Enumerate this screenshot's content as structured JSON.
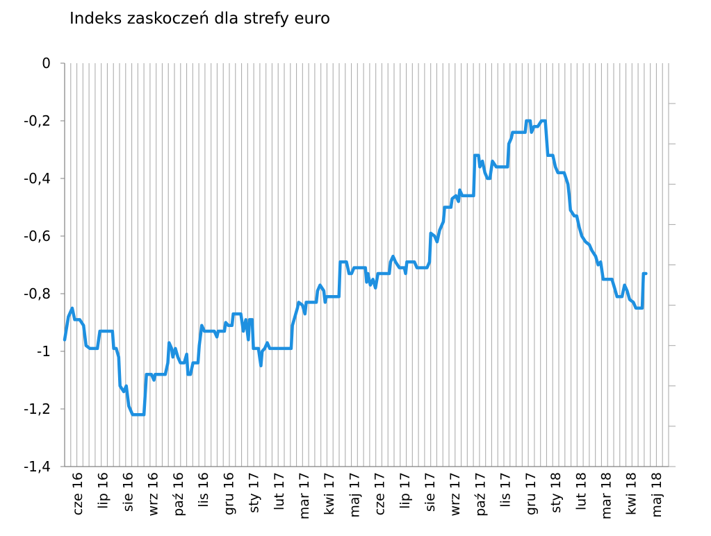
{
  "chart_data": {
    "type": "line",
    "title": "Indeks zaskoczeń dla strefy euro",
    "xlabel": "",
    "ylabel": "",
    "ylim": [
      -1.4,
      0
    ],
    "yticks": [
      {
        "value": 0,
        "label": "0"
      },
      {
        "value": -0.2,
        "label": "-0,2"
      },
      {
        "value": -0.4,
        "label": "-0,4"
      },
      {
        "value": -0.6,
        "label": "-0,6"
      },
      {
        "value": -0.8,
        "label": "-0,8"
      },
      {
        "value": -1.0,
        "label": "-1"
      },
      {
        "value": -1.2,
        "label": "-1,2"
      },
      {
        "value": -1.4,
        "label": "-1,4"
      }
    ],
    "categories": [
      "cze 16",
      "lip 16",
      "sie 16",
      "wrz 16",
      "paź 16",
      "lis 16",
      "gru 16",
      "sty 17",
      "lut 17",
      "mar 17",
      "kwi 17",
      "maj 17",
      "cze 17",
      "lip 17",
      "sie 17",
      "wrz 17",
      "paź 17",
      "lis 17",
      "gru 17",
      "sty 18",
      "lut 18",
      "mar 18",
      "kwi 18",
      "maj 18"
    ],
    "x_range": [
      0,
      24
    ],
    "grid": "vertical",
    "series": [
      {
        "name": "Indeks zaskoczeń",
        "color": "#1E90E0",
        "points": [
          [
            0.0,
            -0.96
          ],
          [
            0.15,
            -0.88
          ],
          [
            0.3,
            -0.85
          ],
          [
            0.4,
            -0.89
          ],
          [
            0.6,
            -0.89
          ],
          [
            0.75,
            -0.91
          ],
          [
            0.85,
            -0.98
          ],
          [
            1.0,
            -0.99
          ],
          [
            1.3,
            -0.99
          ],
          [
            1.4,
            -0.93
          ],
          [
            1.5,
            -0.93
          ],
          [
            1.9,
            -0.93
          ],
          [
            1.95,
            -0.99
          ],
          [
            2.05,
            -0.99
          ],
          [
            2.15,
            -1.02
          ],
          [
            2.2,
            -1.12
          ],
          [
            2.35,
            -1.14
          ],
          [
            2.45,
            -1.12
          ],
          [
            2.55,
            -1.19
          ],
          [
            2.7,
            -1.22
          ],
          [
            3.0,
            -1.22
          ],
          [
            3.15,
            -1.22
          ],
          [
            3.25,
            -1.08
          ],
          [
            3.45,
            -1.08
          ],
          [
            3.55,
            -1.1
          ],
          [
            3.6,
            -1.08
          ],
          [
            3.75,
            -1.08
          ],
          [
            4.0,
            -1.08
          ],
          [
            4.1,
            -1.04
          ],
          [
            4.15,
            -0.97
          ],
          [
            4.25,
            -0.99
          ],
          [
            4.3,
            -1.02
          ],
          [
            4.4,
            -0.99
          ],
          [
            4.5,
            -1.02
          ],
          [
            4.6,
            -1.04
          ],
          [
            4.75,
            -1.04
          ],
          [
            4.85,
            -1.01
          ],
          [
            4.9,
            -1.08
          ],
          [
            5.0,
            -1.08
          ],
          [
            5.1,
            -1.04
          ],
          [
            5.3,
            -1.04
          ],
          [
            5.35,
            -0.98
          ],
          [
            5.45,
            -0.91
          ],
          [
            5.55,
            -0.93
          ],
          [
            5.95,
            -0.93
          ],
          [
            6.05,
            -0.95
          ],
          [
            6.1,
            -0.93
          ],
          [
            6.35,
            -0.93
          ],
          [
            6.4,
            -0.9
          ],
          [
            6.5,
            -0.91
          ],
          [
            6.65,
            -0.91
          ],
          [
            6.7,
            -0.87
          ],
          [
            7.0,
            -0.87
          ],
          [
            7.05,
            -0.9
          ],
          [
            7.1,
            -0.93
          ],
          [
            7.2,
            -0.89
          ],
          [
            7.3,
            -0.96
          ],
          [
            7.35,
            -0.89
          ],
          [
            7.45,
            -0.89
          ],
          [
            7.5,
            -0.99
          ],
          [
            7.7,
            -0.99
          ],
          [
            7.8,
            -1.05
          ],
          [
            7.85,
            -1.0
          ],
          [
            7.95,
            -0.99
          ],
          [
            8.05,
            -0.97
          ],
          [
            8.15,
            -0.99
          ],
          [
            8.5,
            -0.99
          ],
          [
            9.0,
            -0.99
          ],
          [
            9.05,
            -0.91
          ],
          [
            9.25,
            -0.85
          ],
          [
            9.3,
            -0.83
          ],
          [
            9.45,
            -0.84
          ],
          [
            9.55,
            -0.87
          ],
          [
            9.6,
            -0.83
          ],
          [
            9.8,
            -0.83
          ],
          [
            10.0,
            -0.83
          ],
          [
            10.05,
            -0.79
          ],
          [
            10.15,
            -0.77
          ],
          [
            10.3,
            -0.79
          ],
          [
            10.35,
            -0.83
          ],
          [
            10.4,
            -0.81
          ],
          [
            10.9,
            -0.81
          ],
          [
            10.95,
            -0.69
          ],
          [
            11.2,
            -0.69
          ],
          [
            11.3,
            -0.73
          ],
          [
            11.4,
            -0.73
          ],
          [
            11.5,
            -0.71
          ],
          [
            11.95,
            -0.71
          ],
          [
            12.0,
            -0.76
          ],
          [
            12.05,
            -0.73
          ],
          [
            12.15,
            -0.77
          ],
          [
            12.25,
            -0.75
          ],
          [
            12.35,
            -0.78
          ],
          [
            12.45,
            -0.73
          ],
          [
            12.9,
            -0.73
          ],
          [
            12.95,
            -0.69
          ],
          [
            13.05,
            -0.67
          ],
          [
            13.15,
            -0.69
          ],
          [
            13.3,
            -0.71
          ],
          [
            13.5,
            -0.71
          ],
          [
            13.55,
            -0.73
          ],
          [
            13.6,
            -0.69
          ],
          [
            13.9,
            -0.69
          ],
          [
            14.0,
            -0.71
          ],
          [
            14.4,
            -0.71
          ],
          [
            14.5,
            -0.69
          ],
          [
            14.55,
            -0.59
          ],
          [
            14.7,
            -0.6
          ],
          [
            14.8,
            -0.62
          ],
          [
            14.9,
            -0.58
          ],
          [
            15.05,
            -0.55
          ],
          [
            15.1,
            -0.5
          ],
          [
            15.35,
            -0.5
          ],
          [
            15.4,
            -0.47
          ],
          [
            15.55,
            -0.46
          ],
          [
            15.65,
            -0.48
          ],
          [
            15.7,
            -0.44
          ],
          [
            15.8,
            -0.46
          ],
          [
            16.25,
            -0.46
          ],
          [
            16.3,
            -0.32
          ],
          [
            16.45,
            -0.32
          ],
          [
            16.5,
            -0.36
          ],
          [
            16.6,
            -0.34
          ],
          [
            16.7,
            -0.38
          ],
          [
            16.8,
            -0.4
          ],
          [
            16.9,
            -0.4
          ],
          [
            17.0,
            -0.34
          ],
          [
            17.15,
            -0.36
          ],
          [
            17.6,
            -0.36
          ],
          [
            17.65,
            -0.28
          ],
          [
            17.75,
            -0.26
          ],
          [
            17.8,
            -0.24
          ],
          [
            18.3,
            -0.24
          ],
          [
            18.35,
            -0.2
          ],
          [
            18.5,
            -0.2
          ],
          [
            18.55,
            -0.24
          ],
          [
            18.65,
            -0.22
          ],
          [
            18.8,
            -0.22
          ],
          [
            18.95,
            -0.2
          ],
          [
            19.1,
            -0.2
          ],
          [
            19.2,
            -0.32
          ],
          [
            19.4,
            -0.32
          ],
          [
            19.5,
            -0.36
          ],
          [
            19.6,
            -0.38
          ],
          [
            19.85,
            -0.38
          ],
          [
            20.0,
            -0.42
          ],
          [
            20.05,
            -0.46
          ],
          [
            20.1,
            -0.51
          ],
          [
            20.25,
            -0.53
          ],
          [
            20.35,
            -0.53
          ],
          [
            20.45,
            -0.57
          ],
          [
            20.55,
            -0.6
          ],
          [
            20.7,
            -0.62
          ],
          [
            20.85,
            -0.63
          ],
          [
            20.95,
            -0.65
          ],
          [
            21.1,
            -0.67
          ],
          [
            21.2,
            -0.7
          ],
          [
            21.3,
            -0.69
          ],
          [
            21.4,
            -0.75
          ],
          [
            21.75,
            -0.75
          ],
          [
            21.85,
            -0.78
          ],
          [
            21.95,
            -0.81
          ],
          [
            22.15,
            -0.81
          ],
          [
            22.25,
            -0.77
          ],
          [
            22.35,
            -0.79
          ],
          [
            22.45,
            -0.82
          ],
          [
            22.6,
            -0.83
          ],
          [
            22.7,
            -0.85
          ],
          [
            22.95,
            -0.85
          ],
          [
            23.0,
            -0.73
          ],
          [
            23.1,
            -0.73
          ]
        ]
      }
    ]
  }
}
